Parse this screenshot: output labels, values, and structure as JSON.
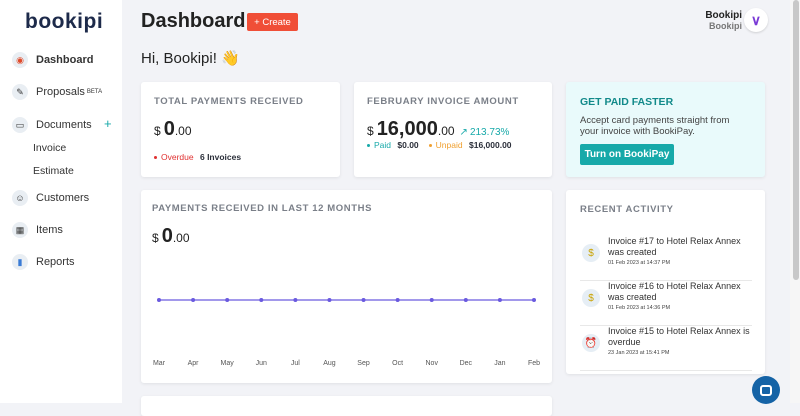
{
  "sidebar": {
    "logo": "bookipi",
    "items": [
      {
        "label": "Dashboard",
        "icon": "dashboard-icon"
      },
      {
        "label": "Proposals",
        "badge": "BETA",
        "icon": "proposal-icon"
      },
      {
        "label": "Documents",
        "icon": "documents-icon",
        "add": "+"
      },
      {
        "label": "Customers",
        "icon": "customer-icon"
      },
      {
        "label": "Items",
        "icon": "items-icon"
      },
      {
        "label": "Reports",
        "icon": "reports-icon"
      }
    ],
    "sub_items": [
      "Invoice",
      "Estimate"
    ]
  },
  "header": {
    "title": "Dashboard",
    "create": "+  Create",
    "greeting": "Hi, Bookipi! 👋",
    "user_name": "Bookipi",
    "company": "Bookipi"
  },
  "total": {
    "title": "TOTAL PAYMENTS RECEIVED",
    "currency": "$",
    "whole": "0",
    "dec": ".00",
    "overdue_label": "Overdue",
    "overdue_value": "6 Invoices"
  },
  "feb": {
    "title": "FEBRUARY INVOICE AMOUNT",
    "currency": "$",
    "whole": "16,000",
    "dec": ".00",
    "change": "213.73%",
    "paid_label": "Paid",
    "paid_value": "$0.00",
    "unpaid_label": "Unpaid",
    "unpaid_value": "$16,000.00"
  },
  "promo": {
    "title": "GET PAID FASTER",
    "text": "Accept card payments straight from your invoice with BookiPay.",
    "button": "Turn on BookiPay"
  },
  "chart_card": {
    "title": "PAYMENTS RECEIVED IN LAST 12 MONTHS",
    "currency": "$",
    "whole": "0",
    "dec": ".00"
  },
  "chart_data": {
    "type": "line",
    "categories": [
      "Mar",
      "Apr",
      "May",
      "Jun",
      "Jul",
      "Aug",
      "Sep",
      "Oct",
      "Nov",
      "Dec",
      "Jan",
      "Feb"
    ],
    "values": [
      0,
      0,
      0,
      0,
      0,
      0,
      0,
      0,
      0,
      0,
      0,
      0
    ],
    "color": "#6a5adf"
  },
  "activity": {
    "title": "RECENT ACTIVITY",
    "items": [
      {
        "text": "Invoice #17 to Hotel Relax Annex was created",
        "time": "01 Feb 2023 at 14:37 PM",
        "icon": "invoice-icon"
      },
      {
        "text": "Invoice #16 to Hotel Relax Annex was created",
        "time": "01 Feb 2023 at 14:36 PM",
        "icon": "invoice-icon"
      },
      {
        "text": "Invoice #15 to Hotel Relax Annex is overdue",
        "time": "23 Jan 2023 at 15:41 PM",
        "icon": "alarm-clock-icon"
      }
    ]
  },
  "colors": {
    "accent": "#f04e37",
    "teal": "#17a9a9",
    "overdue": "#e03030",
    "unpaid": "#f0a030"
  }
}
